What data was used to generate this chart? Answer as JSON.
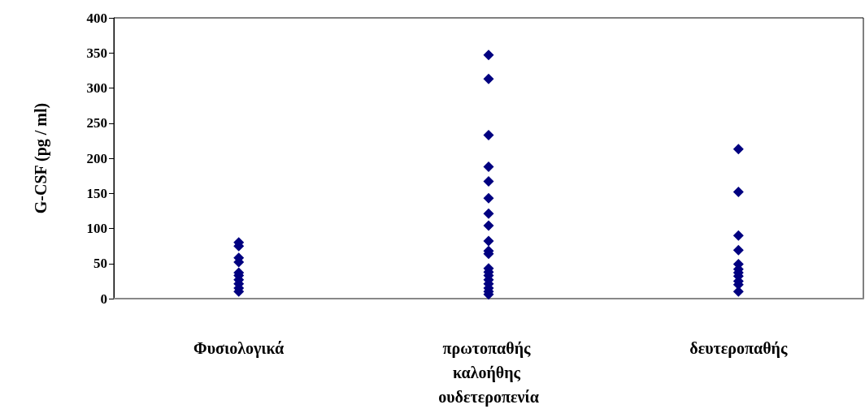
{
  "chart_data": {
    "type": "scatter",
    "ylabel": "G-CSF (pg / ml)",
    "categories": [
      "Φυσιολογικά",
      "πρωτοπαθής καλοήθης ουδετεροπενία",
      "δευτεροπαθής"
    ],
    "ylim": [
      0,
      400
    ],
    "yticks": [
      0,
      50,
      100,
      150,
      200,
      250,
      300,
      350,
      400
    ],
    "grid": false,
    "marker": "diamond",
    "series": [
      {
        "color": "#000080",
        "x": [
          "Φυσιολογικά",
          "Φυσιολογικά",
          "Φυσιολογικά",
          "Φυσιολογικά",
          "Φυσιολογικά",
          "Φυσιολογικά",
          "Φυσιολογικά",
          "Φυσιολογικά",
          "Φυσιολογικά",
          "Φυσιολογικά"
        ],
        "values": [
          80,
          75,
          58,
          52,
          37,
          33,
          27,
          21,
          15,
          10
        ]
      },
      {
        "color": "#000080",
        "x": [
          "πρωτοπαθής καλοήθης ουδετεροπενία",
          "πρωτοπαθής καλοήθης ουδετεροπενία",
          "πρωτοπαθής καλοήθης ουδετεροπενία",
          "πρωτοπαθής καλοήθης ουδετεροπενία",
          "πρωτοπαθής καλοήθης ουδετεροπενία",
          "πρωτοπαθής καλοήθης ουδετεροπενία",
          "πρωτοπαθής καλοήθης ουδετεροπενία",
          "πρωτοπαθής καλοήθης ουδετεροπενία",
          "πρωτοπαθής καλοήθης ουδετεροπενία",
          "πρωτοπαθής καλοήθης ουδετεροπενία",
          "πρωτοπαθής καλοήθης ουδετεροπενία",
          "πρωτοπαθής καλοήθης ουδετεροπενία",
          "πρωτοπαθής καλοήθης ουδετεροπενία",
          "πρωτοπαθής καλοήθης ουδετεροπενία",
          "πρωτοπαθής καλοήθης ουδετεροπενία",
          "πρωτοπαθής καλοήθης ουδετεροπενία",
          "πρωτοπαθής καλοήθης ουδετεροπενία",
          "πρωτοπαθής καλοήθης ουδετεροπενία",
          "πρωτοπαθής καλοήθης ουδετεροπενία"
        ],
        "values": [
          347,
          313,
          233,
          188,
          167,
          143,
          121,
          104,
          82,
          68,
          64,
          43,
          38,
          33,
          27,
          21,
          15,
          10,
          6
        ]
      },
      {
        "color": "#000080",
        "x": [
          "δευτεροπαθής",
          "δευτεροπαθής",
          "δευτεροπαθής",
          "δευτεροπαθής",
          "δευτεροπαθής",
          "δευτεροπαθής",
          "δευτεροπαθής",
          "δευτεροπαθής",
          "δευτεροπαθής",
          "δευτεροπαθής",
          "δευτεροπαθής"
        ],
        "values": [
          213,
          152,
          90,
          69,
          49,
          42,
          37,
          32,
          25,
          20,
          10
        ]
      }
    ]
  }
}
